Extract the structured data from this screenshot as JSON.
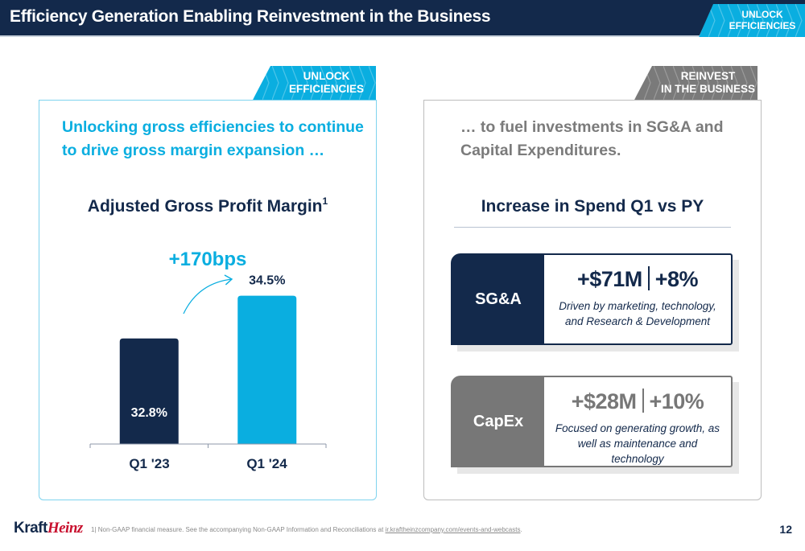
{
  "header": {
    "title": "Efficiency Generation Enabling Reinvestment in the Business",
    "badge": {
      "line1": "UNLOCK",
      "line2": "EFFICIENCIES"
    }
  },
  "colors": {
    "navy": "#13294b",
    "cyan": "#0aaee0",
    "gray": "#777777",
    "red": "#c8102e"
  },
  "left_panel": {
    "badge": {
      "line1": "UNLOCK",
      "line2": "EFFICIENCIES"
    },
    "lead": "Unlocking gross efficiencies to continue to drive gross margin expansion …",
    "title": "Adjusted Gross Profit Margin",
    "title_sup": "1"
  },
  "right_panel": {
    "badge": {
      "line1": "REINVEST",
      "line2": "IN THE BUSINESS"
    },
    "lead": "… to fuel investments in SG&A and Capital Expenditures.",
    "title": "Increase in Spend Q1 vs PY",
    "cards": [
      {
        "label": "SG&A",
        "amount": "+$71M",
        "percent": "+8%",
        "description": "Driven by marketing, technology, and Research & Development"
      },
      {
        "label": "CapEx",
        "amount": "+$28M",
        "percent": "+10%",
        "description": "Focused on generating growth, as well as maintenance and technology"
      }
    ]
  },
  "chart_data": {
    "type": "bar",
    "title": "Adjusted Gross Profit Margin",
    "title_footnote": "1",
    "categories": [
      "Q1 '23",
      "Q1 '24"
    ],
    "values": [
      32.8,
      34.5
    ],
    "value_labels": [
      "32.8%",
      "34.5%"
    ],
    "unit": "%",
    "series_colors": [
      "#13294b",
      "#0aaee0"
    ],
    "annotation": "+170bps",
    "xlabel": "",
    "ylabel": "",
    "ylim": [
      28.6,
      35.0
    ],
    "grid": false,
    "legend": "none"
  },
  "footer": {
    "logo_part1": "Kraft",
    "logo_part2": "Heinz",
    "footnote_text": "1| Non-GAAP financial measure. See the accompanying Non-GAAP Information and Reconciliations at ",
    "footnote_link": "ir.kraftheinzcompany.com/events-and-webcasts",
    "footnote_end": ".",
    "page_number": "12"
  }
}
